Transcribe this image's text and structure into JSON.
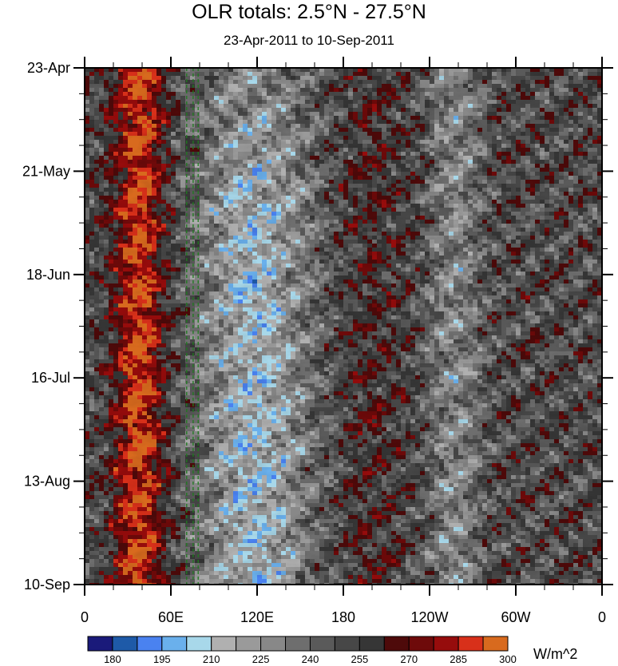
{
  "chart_data": {
    "type": "heatmap",
    "title": "OLR totals: 2.5°N - 27.5°N",
    "subtitle": "23-Apr-2011 to 10-Sep-2011",
    "y_tick_labels": [
      "23-Apr",
      "21-May",
      "18-Jun",
      "16-Jul",
      "13-Aug",
      "10-Sep"
    ],
    "y_tick_days": [
      0,
      28,
      56,
      84,
      112,
      140
    ],
    "y_range_days": [
      0,
      140
    ],
    "x_tick_labels": [
      "0",
      "60E",
      "120E",
      "180",
      "120W",
      "60W",
      "0"
    ],
    "x_tick_lons": [
      0,
      60,
      120,
      180,
      240,
      300,
      360
    ],
    "x_range": [
      0,
      360
    ],
    "reference_lines_lon": [
      71,
      75.5,
      79
    ],
    "reference_line_color": "#1e7a1e",
    "colorbar": {
      "levels": [
        "180",
        "195",
        "210",
        "225",
        "240",
        "255",
        "270",
        "285",
        "300"
      ],
      "level_values": [
        180,
        195,
        210,
        225,
        240,
        255,
        270,
        285,
        300
      ],
      "colors": [
        "#1a1a7a",
        "#1e5aa8",
        "#4a82f0",
        "#6ab0ec",
        "#a8d8ea",
        "#b0b0b0",
        "#9a9a9a",
        "#888888",
        "#6e6e6e",
        "#5a5a5a",
        "#474747",
        "#363636",
        "#4e0a0a",
        "#6e0a0a",
        "#960c0c",
        "#d8301a",
        "#d86a1e"
      ],
      "units": "W/m^2"
    }
  }
}
